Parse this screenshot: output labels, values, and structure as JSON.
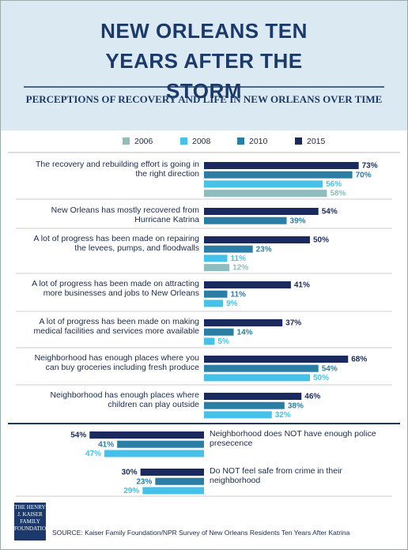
{
  "chart_data": {
    "type": "bar",
    "title": "NEW ORLEANS TEN YEARS AFTER THE STORM",
    "subtitle": "PERCEPTIONS OF RECOVERY AND LIFE IN NEW ORLEANS OVER TIME",
    "categories": [
      "The recovery and rebuilding effort is going in the right direction",
      "New Orleans has mostly recovered from Hurricane Katrina",
      "A lot of progress has been made on repairing the levees, pumps, and floodwalls",
      "A lot of progress has been made on attracting more businesses and jobs to New Orleans",
      "A lot of progress has been made on making medical facilities and services more available",
      "Neighborhood has enough places where you can buy groceries including fresh produce",
      "Neighborhood has enough places where children can play outside",
      "Neighborhood does NOT have enough police presecence",
      "Do NOT feel safe from crime in their neighborhood"
    ],
    "series": [
      {
        "name": "2006",
        "color": "#8fbcbc",
        "values": [
          58,
          null,
          12,
          null,
          null,
          null,
          null,
          null,
          null
        ],
        "value_labels": [
          "58%",
          null,
          "12%",
          null,
          null,
          null,
          null,
          null,
          null
        ]
      },
      {
        "name": "2008",
        "color": "#45c1ea",
        "values": [
          56,
          null,
          11,
          9,
          5,
          50,
          32,
          47,
          29
        ],
        "value_labels": [
          "56%",
          null,
          "11%",
          "9%",
          "5%",
          "50%",
          "32%",
          "47%",
          "29%"
        ]
      },
      {
        "name": "2010",
        "color": "#2a7ea6",
        "values": [
          70,
          39,
          23,
          11,
          14,
          54,
          38,
          41,
          23
        ],
        "value_labels": [
          "70%",
          "39%",
          "23%",
          "11%",
          "14%",
          "54%",
          "38%",
          "41%",
          "23%"
        ]
      },
      {
        "name": "2015",
        "color": "#1b2a5e",
        "values": [
          73,
          54,
          50,
          41,
          37,
          68,
          46,
          54,
          30
        ],
        "value_labels": [
          "73%",
          "54%",
          "50%",
          "41%",
          "37%",
          "68%",
          "46%",
          "54%",
          "30%"
        ]
      }
    ],
    "xlim": [
      0,
      100
    ],
    "source": "SOURCE: Kaiser Family Foundation/NPR Survey of New Orleans Residents Ten Years After Katrina",
    "logo": "THE HENRY J. KAISER FAMILY FOUNDATION"
  }
}
